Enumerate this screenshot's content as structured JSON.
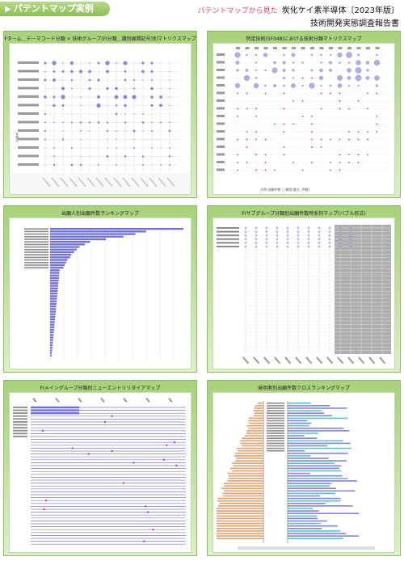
{
  "header": {
    "tag_label": "パテントマップ実例",
    "subtitle": "パテントマップから見た",
    "report_title": "炭化ケイ素半導体〔2023年版〕",
    "report_line2": "技術開発実態調査報告書"
  },
  "panels": [
    {
      "title": "Fターム＿テーマコード分類 × 技術グループ(FI分類＿識別展開記号)別マトリクスマップ",
      "axis_note": "非表示"
    },
    {
      "title": "特定技術(5F048)における技術分類マトリクスマップ",
      "legend": "凡例:出願件数 ○ 範囲(最大, 件数)"
    },
    {
      "title": "出願人別出願件数ランキングマップ"
    },
    {
      "title": "FIサブグループ分類別出願件数時系列マップ(バブル形式)"
    },
    {
      "title": "FIメイングループ分類別ニューエントリリタイアマップ"
    },
    {
      "title": "発明者別出願件数クロスランキングマップ"
    }
  ],
  "colors": {
    "accent": "#8cbf55",
    "bubble": "#6f6fd6",
    "marker_red": "#e0304c",
    "bar_orange": "#e6a070",
    "bar_teal": "#3cbcbc"
  }
}
